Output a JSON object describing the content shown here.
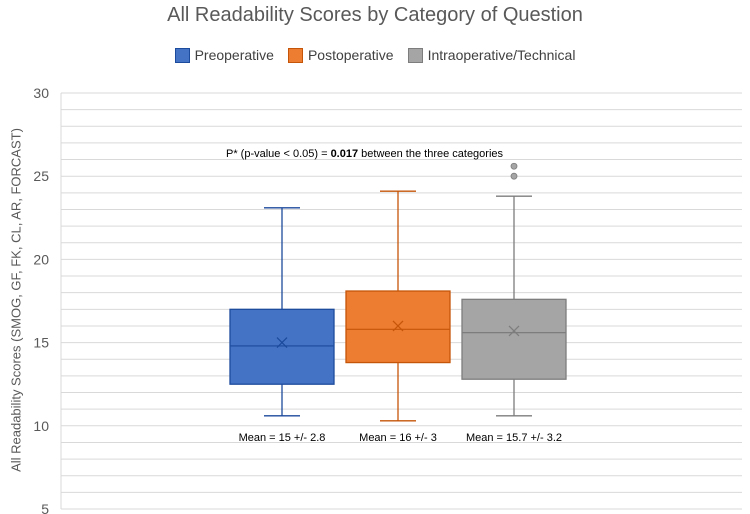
{
  "chart_data": {
    "type": "box",
    "title": "All Readability Scores by Category of Question",
    "ylabel": "All Readability Scores (SMOG, GF, FK, CL, AR, FORCAST)",
    "xlabel": "",
    "ylim": [
      5,
      30
    ],
    "yticks": [
      5,
      10,
      15,
      20,
      25,
      30
    ],
    "minor_grid_step": 1,
    "legend_position": "top",
    "annotation": {
      "prefix": "P* (p-value < 0.05) = ",
      "value": "0.017",
      "suffix": " between the three categories"
    },
    "series": [
      {
        "name": "Preoperative",
        "color": "#4472c4",
        "min": 10.6,
        "q1": 12.5,
        "median": 14.8,
        "q3": 17.0,
        "max": 23.1,
        "mean": 15.0,
        "outliers": [],
        "mean_label": "Mean = 15 +/- 2.8"
      },
      {
        "name": "Postoperative",
        "color": "#ed7d31",
        "min": 10.3,
        "q1": 13.8,
        "median": 15.8,
        "q3": 18.1,
        "max": 24.1,
        "mean": 16.0,
        "outliers": [],
        "mean_label": "Mean = 16 +/- 3"
      },
      {
        "name": "Intraoperative/Technical",
        "color": "#a5a5a5",
        "min": 10.6,
        "q1": 12.8,
        "median": 15.6,
        "q3": 17.6,
        "max": 23.8,
        "mean": 15.7,
        "outliers": [
          25.0,
          25.6
        ],
        "mean_label": "Mean = 15.7 +/- 3.2"
      }
    ]
  }
}
